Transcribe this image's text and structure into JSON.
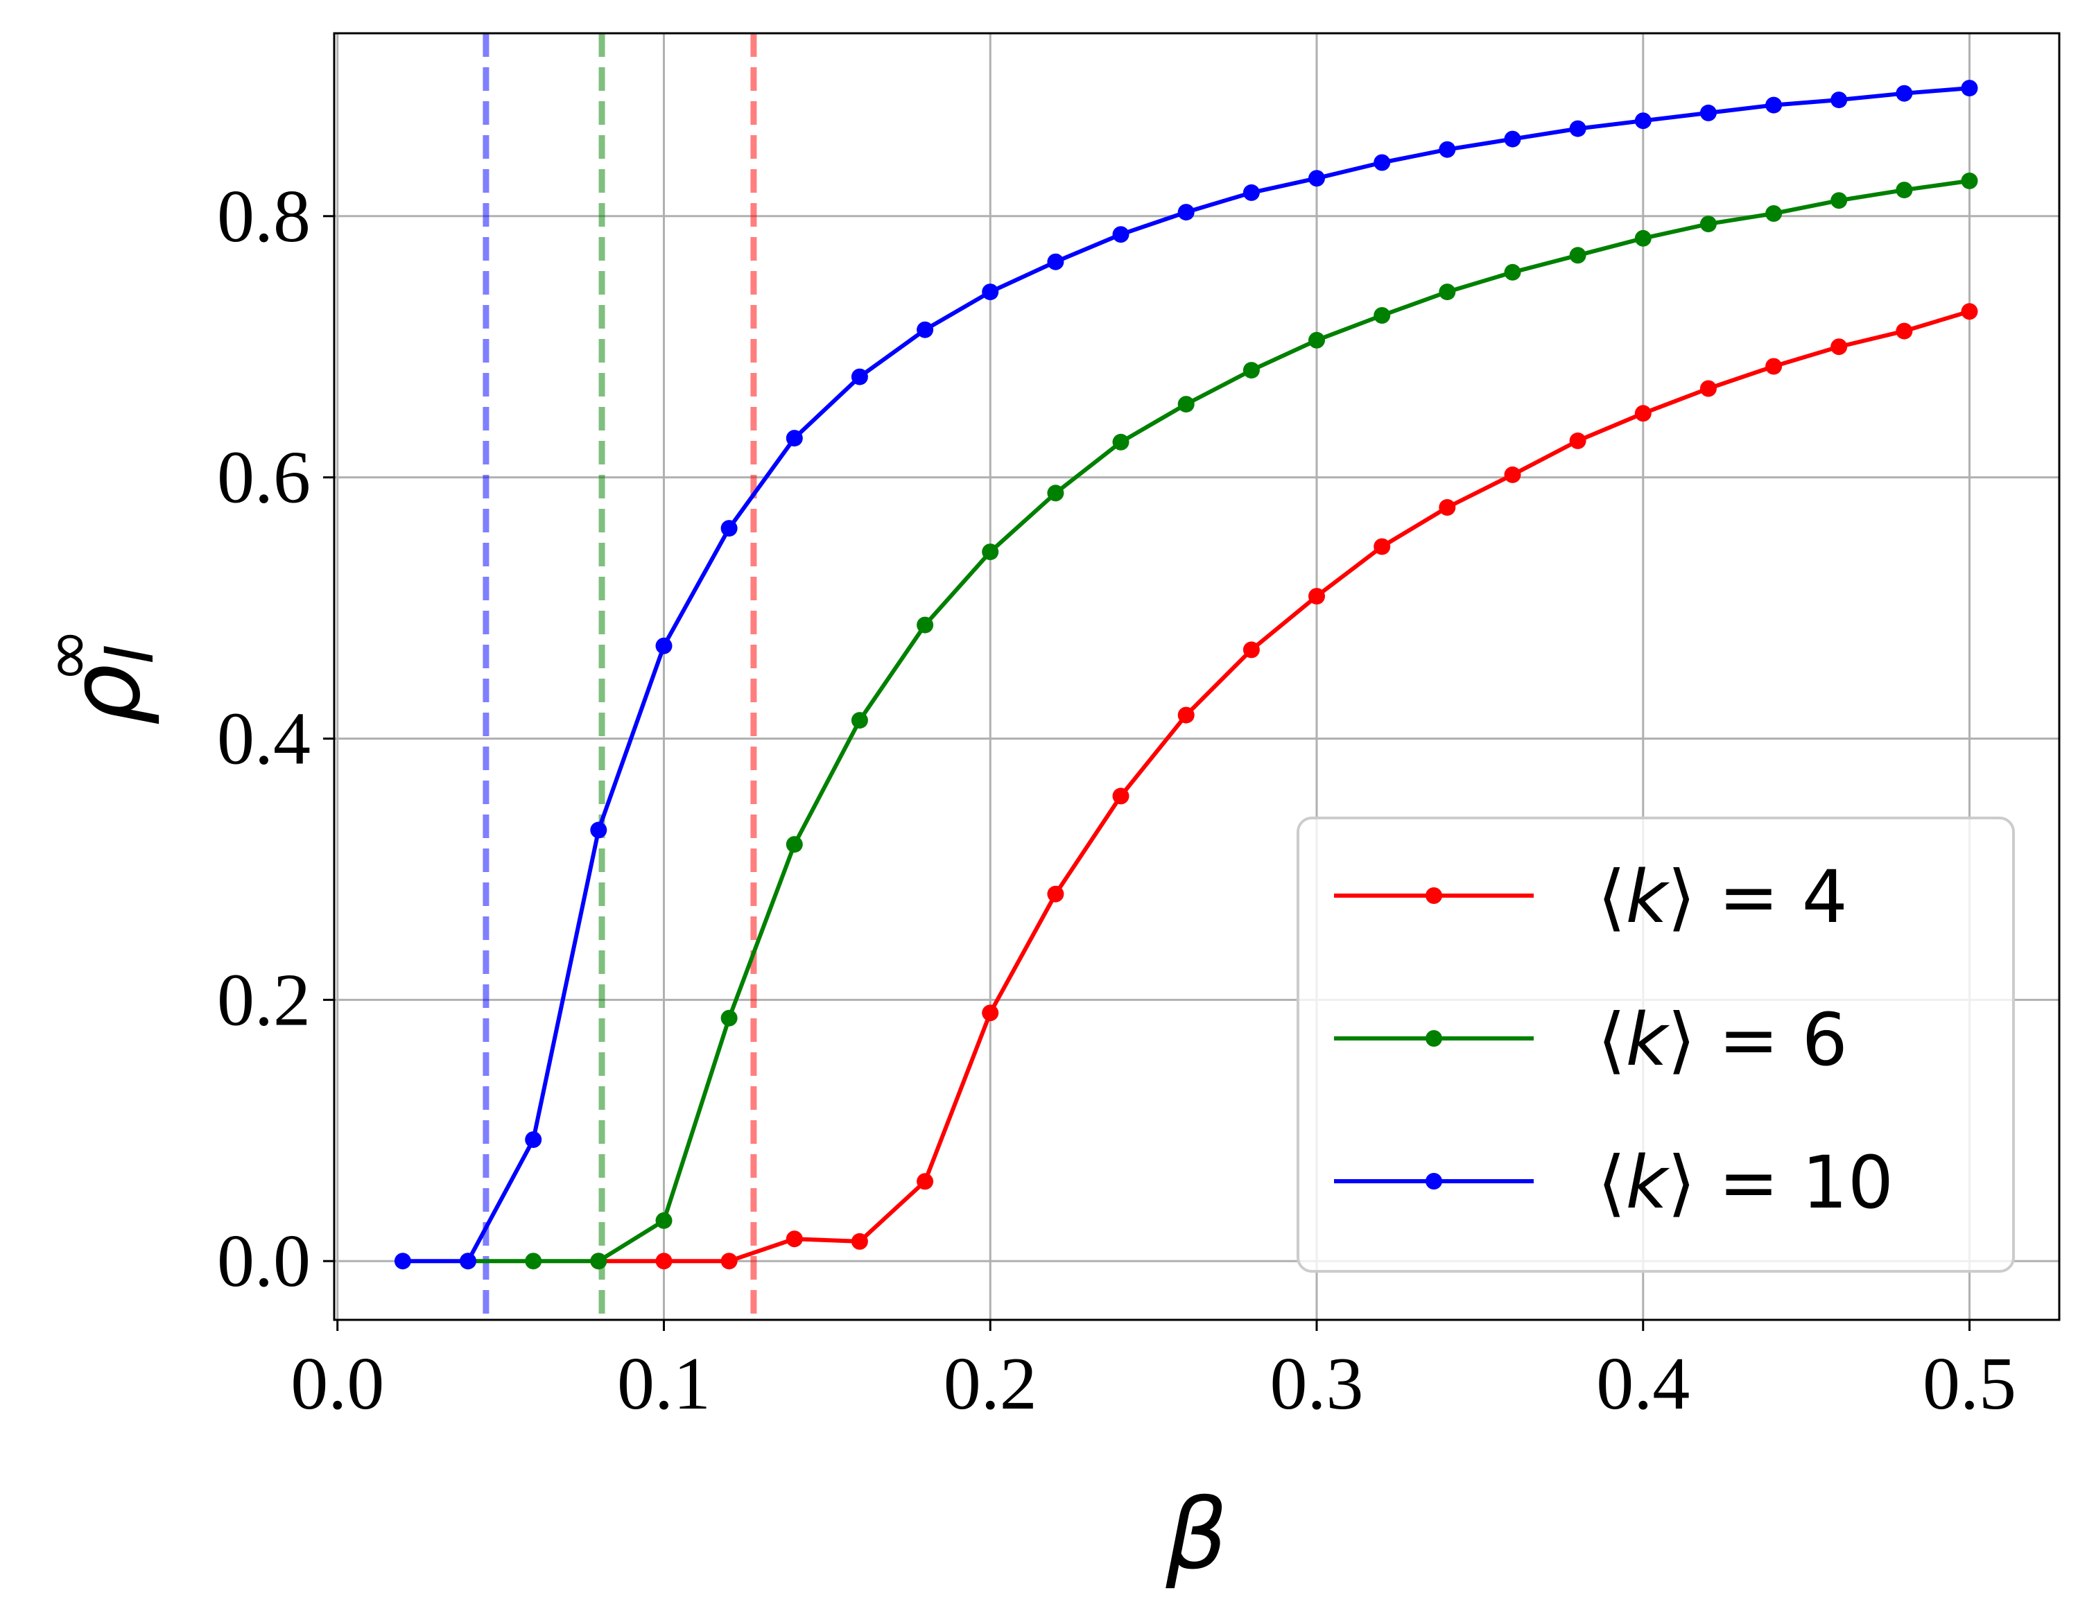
{
  "chart_data": {
    "type": "line",
    "xlabel": "β",
    "ylabel": "ρ",
    "ylabel_sub": "I",
    "ylabel_sup": "∞",
    "xlim": [
      -0.001,
      0.5275
    ],
    "ylim": [
      -0.045,
      0.94
    ],
    "xticks": [
      0.0,
      0.1,
      0.2,
      0.3,
      0.4,
      0.5
    ],
    "xtick_labels": [
      "0.0",
      "0.1",
      "0.2",
      "0.3",
      "0.4",
      "0.5"
    ],
    "yticks": [
      0.0,
      0.2,
      0.4,
      0.6,
      0.8
    ],
    "ytick_labels": [
      "0.0",
      "0.2",
      "0.4",
      "0.6",
      "0.8"
    ],
    "grid": true,
    "legend_position": "lower-right",
    "series": [
      {
        "name": "⟨k⟩ = 4",
        "legend_prefix": "⟨",
        "legend_var": "k",
        "legend_suffix": "⟩ = 4",
        "color": "#ff0000",
        "x": [
          0.08,
          0.1,
          0.12,
          0.14,
          0.16,
          0.18,
          0.2,
          0.22,
          0.24,
          0.26,
          0.28,
          0.3,
          0.32,
          0.34,
          0.36,
          0.38,
          0.4,
          0.42,
          0.44,
          0.46,
          0.48,
          0.5
        ],
        "y": [
          0.0,
          0.0,
          0.0,
          0.017,
          0.015,
          0.061,
          0.19,
          0.281,
          0.356,
          0.418,
          0.468,
          0.509,
          0.547,
          0.577,
          0.602,
          0.628,
          0.649,
          0.668,
          0.685,
          0.7,
          0.712,
          0.727
        ]
      },
      {
        "name": "⟨k⟩ = 6",
        "legend_prefix": "⟨",
        "legend_var": "k",
        "legend_suffix": "⟩ = 6",
        "color": "#008000",
        "x": [
          0.04,
          0.06,
          0.08,
          0.1,
          0.12,
          0.14,
          0.16,
          0.18,
          0.2,
          0.22,
          0.24,
          0.26,
          0.28,
          0.3,
          0.32,
          0.34,
          0.36,
          0.38,
          0.4,
          0.42,
          0.44,
          0.46,
          0.48,
          0.5
        ],
        "y": [
          0.0,
          0.0,
          0.0,
          0.031,
          0.186,
          0.319,
          0.414,
          0.487,
          0.543,
          0.588,
          0.627,
          0.656,
          0.682,
          0.705,
          0.724,
          0.742,
          0.757,
          0.77,
          0.783,
          0.794,
          0.802,
          0.812,
          0.82,
          0.827
        ]
      },
      {
        "name": "⟨k⟩ = 10",
        "legend_prefix": "⟨",
        "legend_var": "k",
        "legend_suffix": "⟩ = 10",
        "color": "#0000ff",
        "x": [
          0.02,
          0.04,
          0.06,
          0.08,
          0.1,
          0.12,
          0.14,
          0.16,
          0.18,
          0.2,
          0.22,
          0.24,
          0.26,
          0.28,
          0.3,
          0.32,
          0.34,
          0.36,
          0.38,
          0.4,
          0.42,
          0.44,
          0.46,
          0.48,
          0.5
        ],
        "y": [
          0.0,
          0.0,
          0.093,
          0.33,
          0.471,
          0.561,
          0.63,
          0.677,
          0.713,
          0.742,
          0.765,
          0.786,
          0.803,
          0.818,
          0.829,
          0.841,
          0.851,
          0.859,
          0.867,
          0.873,
          0.879,
          0.885,
          0.889,
          0.894,
          0.898
        ]
      }
    ],
    "vlines": [
      {
        "x": 0.0455,
        "color": "#0000ff",
        "opacity": 0.5,
        "style": "dashed"
      },
      {
        "x": 0.081,
        "color": "#008000",
        "opacity": 0.5,
        "style": "dashed"
      },
      {
        "x": 0.1275,
        "color": "#ff0000",
        "opacity": 0.5,
        "style": "dashed"
      }
    ]
  }
}
